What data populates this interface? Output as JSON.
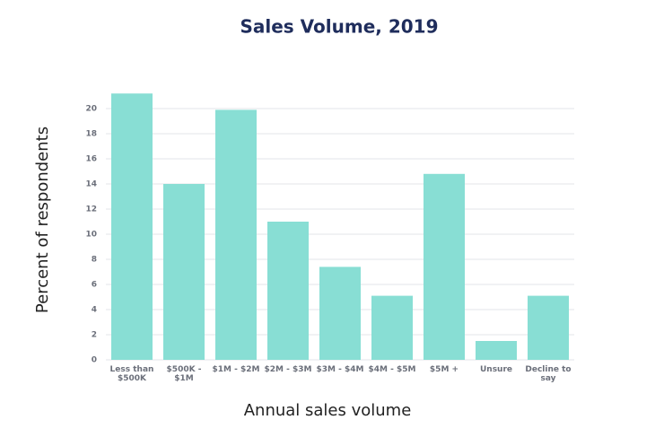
{
  "chart_data": {
    "type": "bar",
    "title": "Sales Volume, 2019",
    "x_label": "Annual sales volume",
    "y_label": "Percent of respondents",
    "categories": [
      "Less than $500K",
      "$500K - $1M",
      "$1M - $2M",
      "$2M - $3M",
      "$3M - $4M",
      "$4M - $5M",
      "$5M +",
      "Unsure",
      "Decline to say"
    ],
    "values": [
      21.2,
      14,
      19.9,
      11,
      7.4,
      5.1,
      14.8,
      1.5,
      5.1
    ],
    "color": "#88ded4",
    "ylim": [
      0,
      21.2
    ],
    "yticks": [
      0,
      2,
      4,
      6,
      8,
      10,
      12,
      14,
      16,
      18,
      20
    ],
    "grid": true
  }
}
